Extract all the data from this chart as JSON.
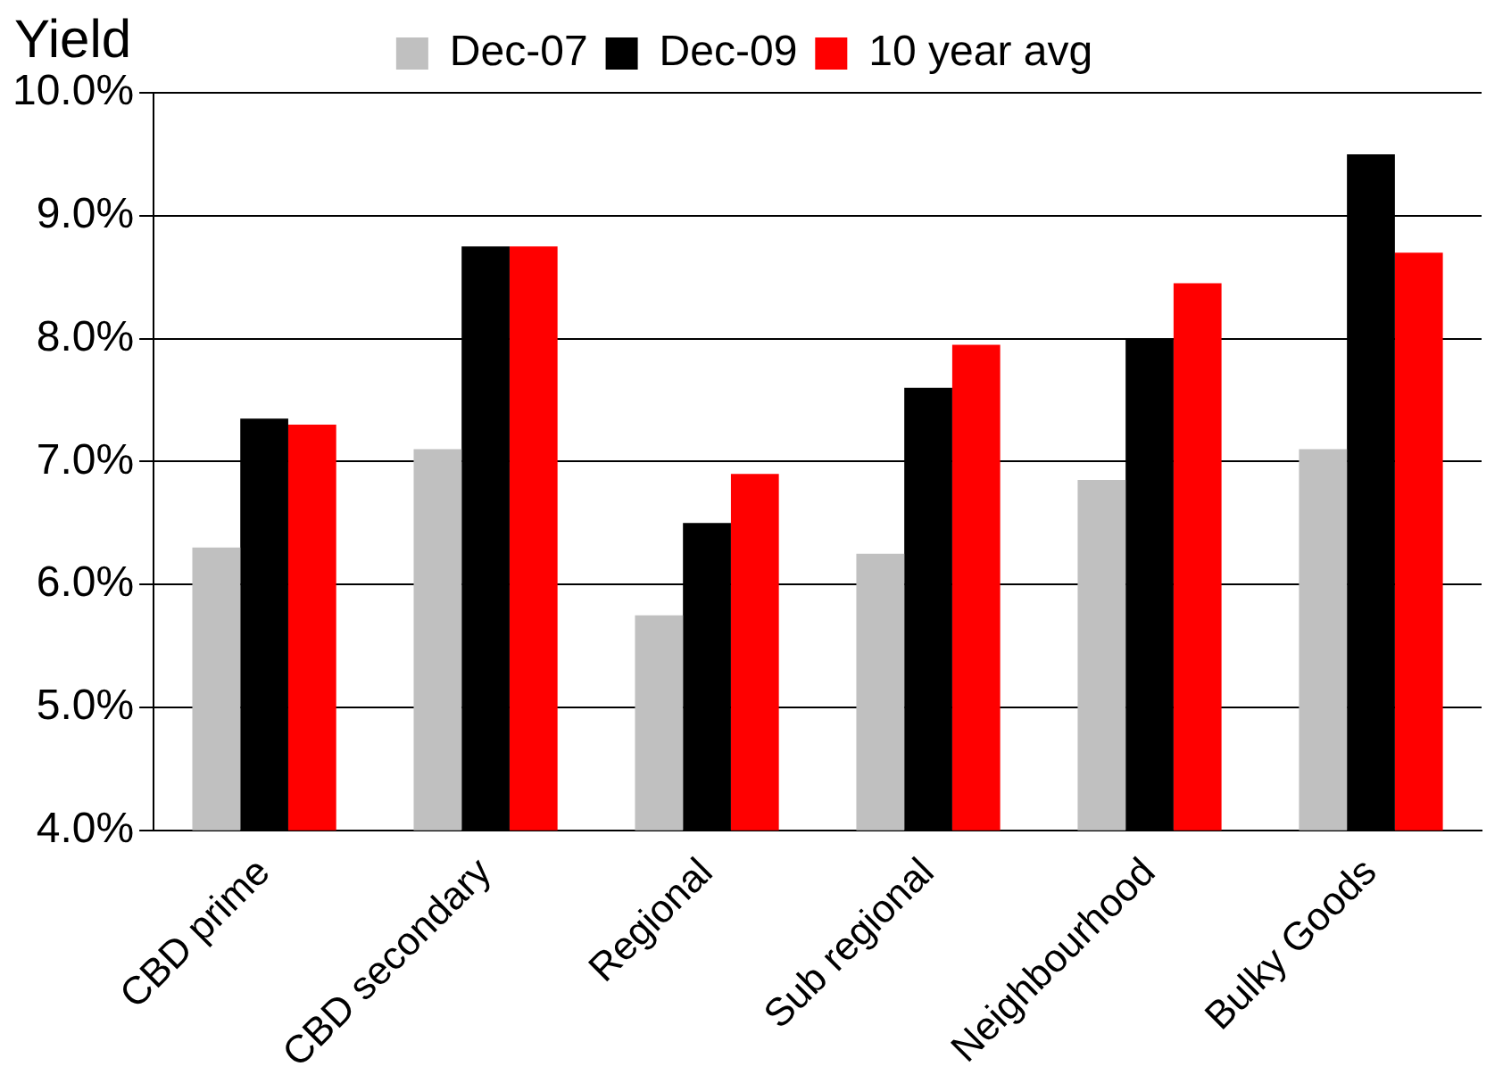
{
  "chart_data": {
    "type": "bar",
    "ylabel": "Yield",
    "categories": [
      "CBD prime",
      "CBD secondary",
      "Regional",
      "Sub regional",
      "Neighbourhood",
      "Bulky Goods"
    ],
    "series": [
      {
        "name": "Dec-07",
        "color": "#c0c0c0",
        "values": [
          6.3,
          7.1,
          5.75,
          6.25,
          6.85,
          7.1
        ]
      },
      {
        "name": "Dec-09",
        "color": "#000000",
        "values": [
          7.35,
          8.75,
          6.5,
          7.6,
          8.0,
          9.5
        ]
      },
      {
        "name": "10 year avg",
        "color": "#ff0000",
        "values": [
          7.3,
          8.75,
          6.9,
          7.95,
          8.45,
          8.7
        ]
      }
    ],
    "ylim": [
      4,
      10
    ],
    "yticks": [
      {
        "value": 4,
        "label": "4.0%"
      },
      {
        "value": 5,
        "label": "5.0%"
      },
      {
        "value": 6,
        "label": "6.0%"
      },
      {
        "value": 7,
        "label": "7.0%"
      },
      {
        "value": 8,
        "label": "8.0%"
      },
      {
        "value": 9,
        "label": "9.0%"
      },
      {
        "value": 10,
        "label": "10.0%"
      }
    ],
    "grid": "y",
    "legend": "top"
  }
}
